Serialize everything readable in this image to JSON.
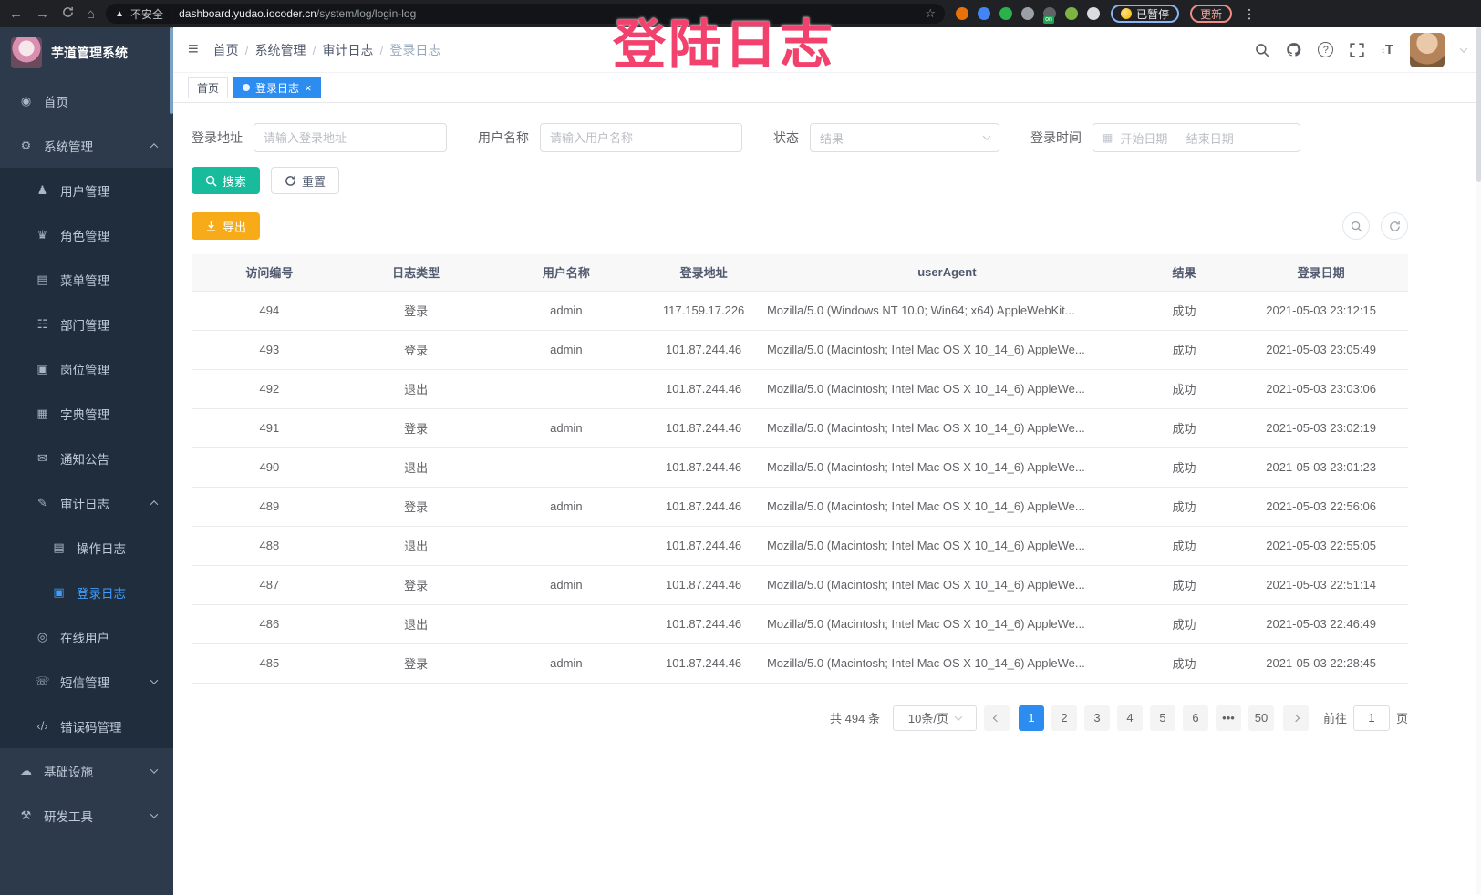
{
  "browser": {
    "not_secure": "不安全",
    "url_host": "dashboard.yudao.iocoder.cn",
    "url_path": "/system/log/login-log",
    "paused": "已暂停",
    "update": "更新",
    "extensions": [
      "#e8710a",
      "#4285f4",
      "#2bb24c",
      "#9aa0a6",
      "#5f6368",
      "#7cb342",
      "#dadce0"
    ]
  },
  "overlay": {
    "text": "登陆日志",
    "color": "#f2416c"
  },
  "sidebar": {
    "title": "芋道管理系统",
    "items": [
      {
        "label": "首页",
        "icon": "dashboard-icon",
        "level": 1
      },
      {
        "label": "系统管理",
        "icon": "gear-icon",
        "level": 1,
        "arrow": "up"
      },
      {
        "label": "用户管理",
        "icon": "user-icon",
        "level": 2
      },
      {
        "label": "角色管理",
        "icon": "role-icon",
        "level": 2
      },
      {
        "label": "菜单管理",
        "icon": "menu-icon",
        "level": 2
      },
      {
        "label": "部门管理",
        "icon": "dept-icon",
        "level": 2
      },
      {
        "label": "岗位管理",
        "icon": "post-icon",
        "level": 2
      },
      {
        "label": "字典管理",
        "icon": "dict-icon",
        "level": 2
      },
      {
        "label": "通知公告",
        "icon": "notice-icon",
        "level": 2
      },
      {
        "label": "审计日志",
        "icon": "audit-log-icon",
        "level": 2,
        "arrow": "up"
      },
      {
        "label": "操作日志",
        "icon": "operate-log-icon",
        "level": 3
      },
      {
        "label": "登录日志",
        "icon": "login-log-icon",
        "level": 3,
        "active": true
      },
      {
        "label": "在线用户",
        "icon": "online-user-icon",
        "level": 2
      },
      {
        "label": "短信管理",
        "icon": "sms-icon",
        "level": 2,
        "arrow": "down"
      },
      {
        "label": "错误码管理",
        "icon": "error-code-icon",
        "level": 2
      },
      {
        "label": "基础设施",
        "icon": "infra-icon",
        "level": 1,
        "arrow": "down"
      },
      {
        "label": "研发工具",
        "icon": "tools-icon",
        "level": 1,
        "arrow": "down"
      }
    ]
  },
  "navbar": {
    "breadcrumb": [
      "首页",
      "系统管理",
      "审计日志",
      "登录日志"
    ]
  },
  "tags": [
    {
      "label": "首页",
      "active": false
    },
    {
      "label": "登录日志",
      "active": true
    }
  ],
  "filters": {
    "address_label": "登录地址",
    "address_placeholder": "请输入登录地址",
    "username_label": "用户名称",
    "username_placeholder": "请输入用户名称",
    "status_label": "状态",
    "status_placeholder": "结果",
    "time_label": "登录时间",
    "time_start": "开始日期",
    "time_sep": "-",
    "time_end": "结束日期"
  },
  "actions": {
    "search": "搜索",
    "reset": "重置",
    "export": "导出"
  },
  "table": {
    "columns": [
      "访问编号",
      "日志类型",
      "用户名称",
      "登录地址",
      "userAgent",
      "结果",
      "登录日期"
    ],
    "rows": [
      [
        "494",
        "登录",
        "admin",
        "117.159.17.226",
        "Mozilla/5.0 (Windows NT 10.0; Win64; x64) AppleWebKit...",
        "成功",
        "2021-05-03 23:12:15"
      ],
      [
        "493",
        "登录",
        "admin",
        "101.87.244.46",
        "Mozilla/5.0 (Macintosh; Intel Mac OS X 10_14_6) AppleWe...",
        "成功",
        "2021-05-03 23:05:49"
      ],
      [
        "492",
        "退出",
        "",
        "101.87.244.46",
        "Mozilla/5.0 (Macintosh; Intel Mac OS X 10_14_6) AppleWe...",
        "成功",
        "2021-05-03 23:03:06"
      ],
      [
        "491",
        "登录",
        "admin",
        "101.87.244.46",
        "Mozilla/5.0 (Macintosh; Intel Mac OS X 10_14_6) AppleWe...",
        "成功",
        "2021-05-03 23:02:19"
      ],
      [
        "490",
        "退出",
        "",
        "101.87.244.46",
        "Mozilla/5.0 (Macintosh; Intel Mac OS X 10_14_6) AppleWe...",
        "成功",
        "2021-05-03 23:01:23"
      ],
      [
        "489",
        "登录",
        "admin",
        "101.87.244.46",
        "Mozilla/5.0 (Macintosh; Intel Mac OS X 10_14_6) AppleWe...",
        "成功",
        "2021-05-03 22:56:06"
      ],
      [
        "488",
        "退出",
        "",
        "101.87.244.46",
        "Mozilla/5.0 (Macintosh; Intel Mac OS X 10_14_6) AppleWe...",
        "成功",
        "2021-05-03 22:55:05"
      ],
      [
        "487",
        "登录",
        "admin",
        "101.87.244.46",
        "Mozilla/5.0 (Macintosh; Intel Mac OS X 10_14_6) AppleWe...",
        "成功",
        "2021-05-03 22:51:14"
      ],
      [
        "486",
        "退出",
        "",
        "101.87.244.46",
        "Mozilla/5.0 (Macintosh; Intel Mac OS X 10_14_6) AppleWe...",
        "成功",
        "2021-05-03 22:46:49"
      ],
      [
        "485",
        "登录",
        "admin",
        "101.87.244.46",
        "Mozilla/5.0 (Macintosh; Intel Mac OS X 10_14_6) AppleWe...",
        "成功",
        "2021-05-03 22:28:45"
      ]
    ]
  },
  "pagination": {
    "total": "共 494 条",
    "page_size": "10条/页",
    "pages": [
      "1",
      "2",
      "3",
      "4",
      "5",
      "6",
      "•••",
      "50"
    ],
    "active_page": "1",
    "goto_label": "前往",
    "goto_value": "1",
    "goto_suffix": "页"
  },
  "colors": {
    "accent_blue": "#2d8cf0",
    "active_menu_blue": "#409EFF",
    "search_teal": "#18bc9c",
    "export_orange": "#f7ab19",
    "overlay_pink": "#f2416c",
    "sidebar_bg": "#2d3a4b",
    "submenu_bg": "#1f2d3d"
  }
}
